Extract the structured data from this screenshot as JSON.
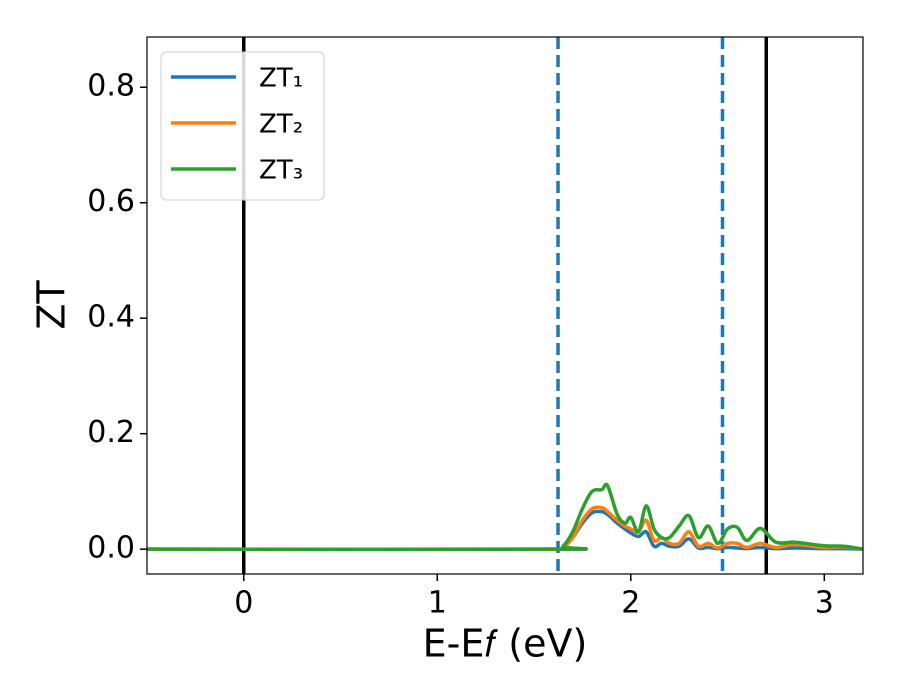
{
  "chart_data": {
    "type": "line",
    "x_label": "E-E𝑓 (eV)",
    "y_label": "ZT",
    "x": [
      -0.5,
      1.6,
      1.65,
      1.7,
      1.75,
      1.8,
      1.85,
      1.88,
      1.93,
      1.97,
      2.0,
      2.04,
      2.08,
      2.12,
      2.16,
      2.2,
      2.25,
      2.3,
      2.35,
      2.4,
      2.45,
      2.5,
      2.55,
      2.6,
      2.67,
      2.75,
      2.85,
      3.0,
      3.1,
      3.2
    ],
    "series": [
      {
        "name": "ZT₁",
        "color": "#1f77b4",
        "values": [
          0,
          0,
          0.002,
          0.02,
          0.045,
          0.063,
          0.065,
          0.06,
          0.045,
          0.035,
          0.028,
          0.022,
          0.03,
          0.005,
          0.01,
          0.005,
          0.005,
          0.018,
          0.002,
          0.003,
          0.001,
          0.003,
          0.002,
          0.001,
          0.003,
          0.001,
          0.002,
          0.001,
          0.001,
          0
        ]
      },
      {
        "name": "ZT₂",
        "color": "#ff7f0e",
        "values": [
          0,
          0,
          0.003,
          0.02,
          0.05,
          0.07,
          0.072,
          0.065,
          0.05,
          0.04,
          0.035,
          0.03,
          0.05,
          0.015,
          0.02,
          0.01,
          0.01,
          0.03,
          0.005,
          0.01,
          0.002,
          0.01,
          0.01,
          0.003,
          0.01,
          0.003,
          0.008,
          0.003,
          0.004,
          0
        ]
      },
      {
        "name": "ZT₃",
        "color": "#2ca02c",
        "values": [
          0,
          0,
          0.005,
          0.03,
          0.07,
          0.1,
          0.103,
          0.11,
          0.06,
          0.045,
          0.055,
          0.03,
          0.075,
          0.035,
          0.02,
          0.02,
          0.04,
          0.058,
          0.02,
          0.04,
          0.01,
          0.035,
          0.038,
          0.015,
          0.036,
          0.012,
          0.012,
          0.006,
          0.005,
          0
        ]
      }
    ],
    "vlines": [
      {
        "x": 0,
        "color": "#000000",
        "dashed": false
      },
      {
        "x": 1.624,
        "color": "#1f77b4",
        "dashed": true
      },
      {
        "x": 2.474,
        "color": "#1f77b4",
        "dashed": true
      },
      {
        "x": 2.7,
        "color": "#000000",
        "dashed": false
      }
    ],
    "xlim": [
      -0.5,
      3.2
    ],
    "ylim": [
      -0.043,
      0.887
    ],
    "xticks": [
      0,
      1,
      2,
      3
    ],
    "yticks": [
      {
        "value": 0,
        "label": "0.0"
      },
      0.2,
      0.4,
      0.6,
      0.8
    ],
    "legend": "upper-left",
    "grid": false
  }
}
